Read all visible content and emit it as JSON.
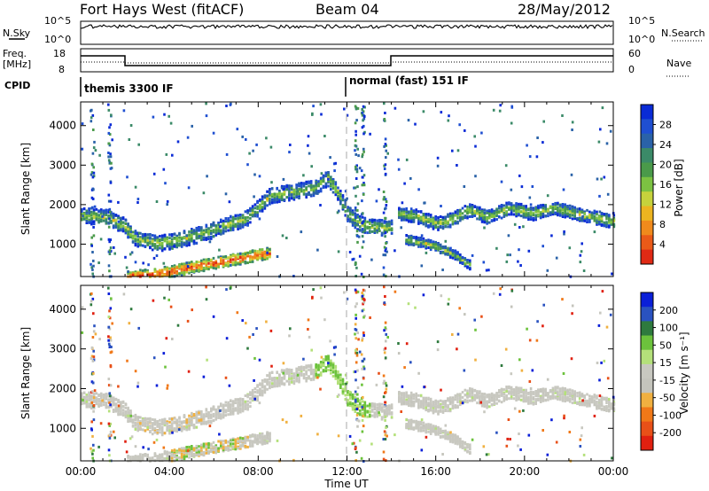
{
  "header": {
    "station": "Fort Hays West (fitACF)",
    "beam": "Beam 04",
    "date": "28/May/2012"
  },
  "top_panels": {
    "nsky_label": "N.Sky",
    "nsky_ticks": [
      "10^5",
      "10^0"
    ],
    "nsearch_label": "N.Search",
    "nsearch_ticks": [
      "10^5",
      "10^0"
    ],
    "freq_label": "Freq.",
    "freq_unit": "[MHz]",
    "freq_ticks": [
      "18",
      "8"
    ],
    "nave_label": "Nave",
    "nave_ticks": [
      "60",
      "0"
    ],
    "cpid_label": "CPID",
    "cpid_segments": [
      "themis 3300 IF",
      "normal (fast) 151 IF"
    ]
  },
  "x_axis": {
    "label": "Time UT",
    "ticks": [
      "00:00",
      "04:00",
      "08:00",
      "12:00",
      "16:00",
      "20:00",
      "00:00"
    ]
  },
  "chart_data": [
    {
      "type": "heatmap",
      "name": "power",
      "ylabel": "Slant Range [km]",
      "yticks": [
        1000,
        2000,
        3000,
        4000
      ],
      "ylim": [
        180,
        4600
      ],
      "xlim": [
        0,
        24
      ],
      "colorbar_label": "Power [dB]",
      "colorbar_ticks": [
        "28",
        "24",
        "20",
        "16",
        "12",
        "8",
        "4"
      ],
      "colorbar_range": [
        0,
        30
      ],
      "colors": [
        "#0a2bd6",
        "#1f4fd1",
        "#2a62a8",
        "#3b8a68",
        "#4a9a4a",
        "#7cc242",
        "#c6d23c",
        "#ecb420",
        "#f08a1c",
        "#ea5a18",
        "#e02a14"
      ],
      "features": [
        {
          "desc": "upper echo band",
          "track": [
            [
              0,
              1750
            ],
            [
              1.2,
              1700
            ],
            [
              1.9,
              1500
            ],
            [
              2.5,
              1150
            ],
            [
              3.5,
              1050
            ],
            [
              4.5,
              1150
            ],
            [
              5.5,
              1300
            ],
            [
              6.5,
              1500
            ],
            [
              7.5,
              1700
            ],
            [
              8.5,
              2250
            ],
            [
              9.5,
              2350
            ],
            [
              10.5,
              2450
            ],
            [
              11.1,
              2700
            ],
            [
              11.6,
              2300
            ],
            [
              12.0,
              1800
            ],
            [
              12.5,
              1550
            ],
            [
              13.3,
              1450
            ],
            [
              14.0,
              1450
            ]
          ],
          "width": 300
        },
        {
          "desc": "lower echo band",
          "track": [
            [
              2.0,
              200
            ],
            [
              3.0,
              250
            ],
            [
              4.0,
              330
            ],
            [
              5.0,
              450
            ],
            [
              6.0,
              550
            ],
            [
              7.0,
              650
            ],
            [
              8.0,
              760
            ],
            [
              8.5,
              800
            ]
          ],
          "width": 220
        },
        {
          "desc": "post-gap band",
          "track": [
            [
              14.2,
              1800
            ],
            [
              15.0,
              1750
            ],
            [
              16.0,
              1550
            ],
            [
              16.7,
              1650
            ],
            [
              17.5,
              1900
            ],
            [
              18.3,
              1700
            ],
            [
              19.3,
              1950
            ],
            [
              20.3,
              1800
            ],
            [
              21.3,
              1950
            ],
            [
              22.3,
              1800
            ],
            [
              23.2,
              1700
            ],
            [
              24.0,
              1600
            ]
          ],
          "width": 260
        },
        {
          "desc": "descending arc",
          "track": [
            [
              14.6,
              1150
            ],
            [
              15.5,
              1050
            ],
            [
              16.3,
              900
            ],
            [
              17.0,
              700
            ],
            [
              17.5,
              500
            ]
          ],
          "width": 180
        }
      ]
    },
    {
      "type": "heatmap",
      "name": "velocity",
      "ylabel": "Slant Range [km]",
      "yticks": [
        1000,
        2000,
        3000,
        4000
      ],
      "ylim": [
        180,
        4600
      ],
      "xlim": [
        0,
        24
      ],
      "colorbar_label": "Velocity [m s⁻¹]",
      "colorbar_ticks": [
        "200",
        "100",
        "50",
        "15",
        "-15",
        "-50",
        "-100",
        "-200"
      ],
      "colorbar_range": [
        -250,
        250
      ],
      "colors": [
        "#0a1fd8",
        "#2a52c0",
        "#2e7a3e",
        "#6cc23c",
        "#b4e07a",
        "#c8c8c0",
        "#c4c4bc",
        "#f0b040",
        "#f07818",
        "#e85018",
        "#e02010"
      ]
    }
  ],
  "markers": {
    "dashed_time": 11.9,
    "solid_time": 14.0
  }
}
